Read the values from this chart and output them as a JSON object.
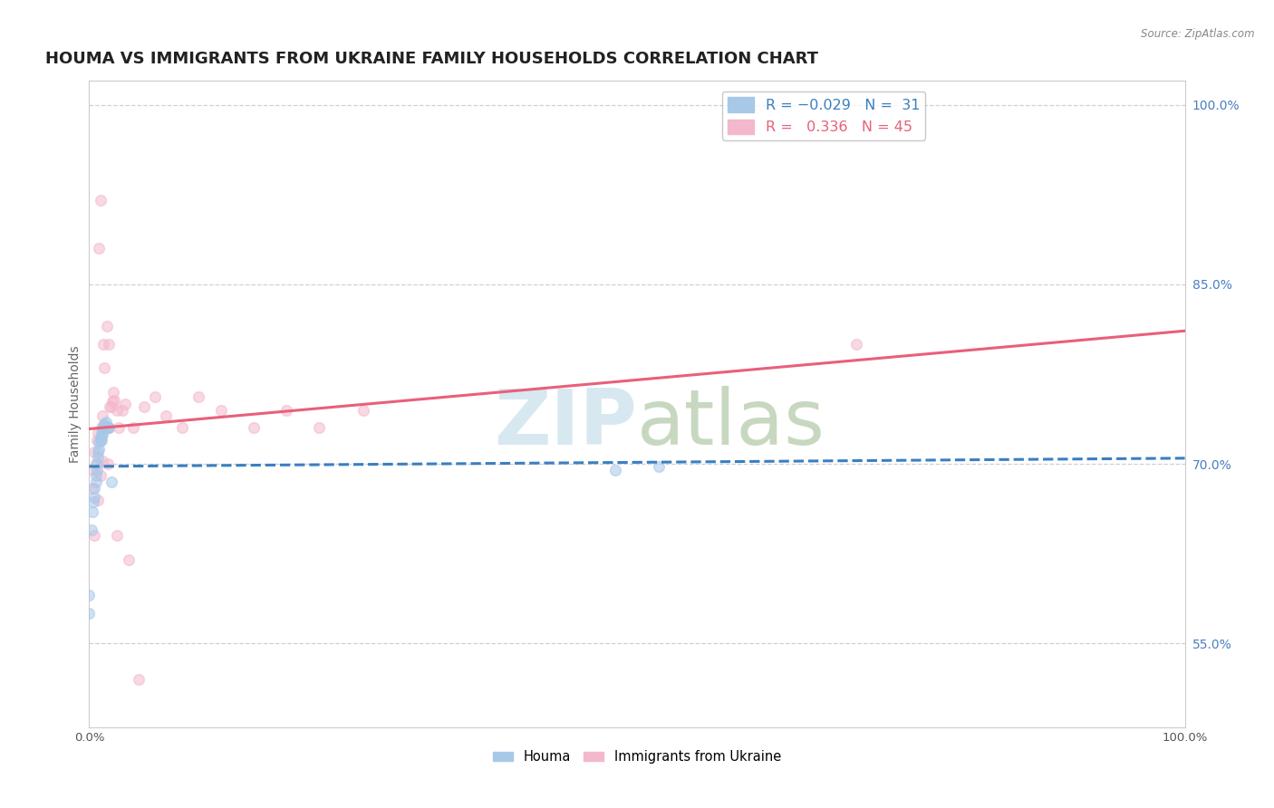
{
  "title": "HOUMA VS IMMIGRANTS FROM UKRAINE FAMILY HOUSEHOLDS CORRELATION CHART",
  "source": "Source: ZipAtlas.com",
  "ylabel": "Family Households",
  "xlim": [
    0.0,
    1.0
  ],
  "ylim": [
    0.48,
    1.02
  ],
  "houma_scatter_x": [
    0.0,
    0.0,
    0.002,
    0.003,
    0.004,
    0.005,
    0.005,
    0.006,
    0.006,
    0.007,
    0.007,
    0.008,
    0.008,
    0.009,
    0.009,
    0.01,
    0.01,
    0.011,
    0.011,
    0.012,
    0.012,
    0.013,
    0.013,
    0.014,
    0.015,
    0.016,
    0.017,
    0.018,
    0.02,
    0.48,
    0.52
  ],
  "houma_scatter_y": [
    0.575,
    0.59,
    0.645,
    0.66,
    0.668,
    0.672,
    0.68,
    0.685,
    0.69,
    0.695,
    0.7,
    0.705,
    0.71,
    0.712,
    0.718,
    0.72,
    0.722,
    0.72,
    0.725,
    0.728,
    0.724,
    0.73,
    0.732,
    0.733,
    0.735,
    0.73,
    0.73,
    0.73,
    0.685,
    0.695,
    0.698
  ],
  "ukraine_scatter_x": [
    0.003,
    0.004,
    0.005,
    0.006,
    0.007,
    0.008,
    0.009,
    0.01,
    0.011,
    0.012,
    0.013,
    0.014,
    0.015,
    0.016,
    0.017,
    0.018,
    0.019,
    0.02,
    0.021,
    0.022,
    0.023,
    0.025,
    0.027,
    0.03,
    0.033,
    0.036,
    0.04,
    0.045,
    0.05,
    0.06,
    0.07,
    0.085,
    0.1,
    0.12,
    0.15,
    0.18,
    0.21,
    0.25,
    0.005,
    0.008,
    0.01,
    0.012,
    0.018,
    0.7,
    0.025
  ],
  "ukraine_scatter_y": [
    0.68,
    0.695,
    0.71,
    0.7,
    0.72,
    0.726,
    0.88,
    0.92,
    0.73,
    0.74,
    0.8,
    0.78,
    0.73,
    0.815,
    0.7,
    0.73,
    0.748,
    0.748,
    0.752,
    0.76,
    0.753,
    0.745,
    0.73,
    0.745,
    0.75,
    0.62,
    0.73,
    0.52,
    0.748,
    0.756,
    0.74,
    0.73,
    0.756,
    0.745,
    0.73,
    0.745,
    0.73,
    0.745,
    0.64,
    0.67,
    0.69,
    0.702,
    0.8,
    0.8,
    0.64
  ],
  "houma_scatter_color": "#a8c8e8",
  "ukraine_scatter_color": "#f4b8cc",
  "houma_line_color": "#3a7fc1",
  "ukraine_line_color": "#e8607a",
  "houma_line_style": "--",
  "ukraine_line_style": "-",
  "grid_color": "#d0d0d0",
  "background_color": "#ffffff",
  "watermark_color": "#d8e8f0",
  "title_fontsize": 13,
  "label_fontsize": 10,
  "tick_label_color": "#4a7fc1",
  "y_ticks": [
    0.55,
    0.7,
    0.85,
    1.0
  ],
  "y_tick_labels": [
    "55.0%",
    "70.0%",
    "85.0%",
    "100.0%"
  ],
  "x_ticks": [
    0.0,
    1.0
  ],
  "x_tick_labels": [
    "0.0%",
    "100.0%"
  ]
}
